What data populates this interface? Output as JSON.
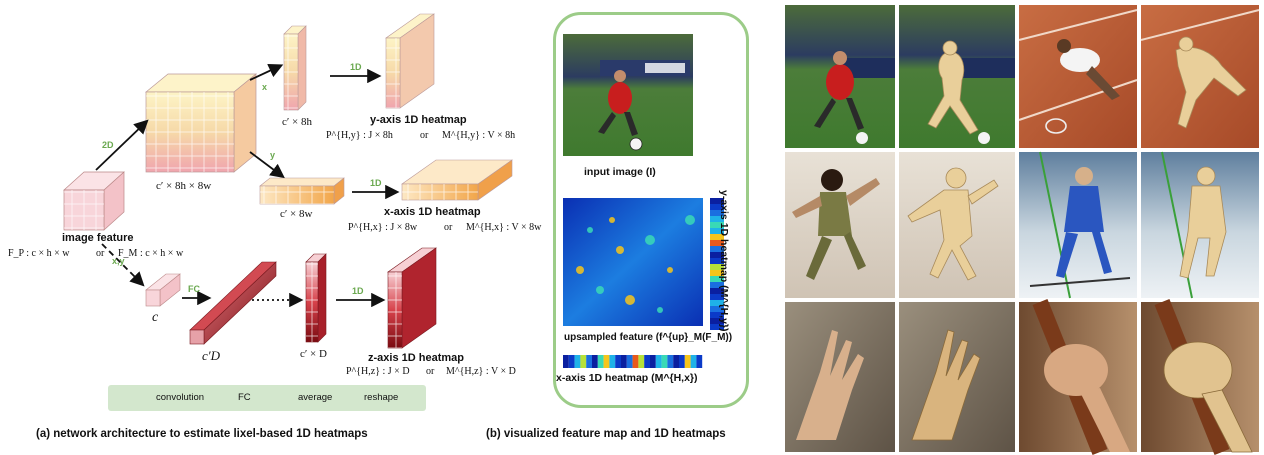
{
  "panel_a": {
    "caption": "(a) network architecture to estimate lixel-based 1D heatmaps",
    "image_feature": {
      "title": "image feature",
      "formula_p": "F_P : c × h × w",
      "or": "or",
      "formula_m": "F_M : c × h × w"
    },
    "arrow_2d": "2D",
    "arrow_x": "x",
    "arrow_y": "y",
    "arrow_xy": "x,y",
    "arrow_1d": "1D",
    "arrow_fc": "FC",
    "big_volume": "c′ × 8h × 8w",
    "y_branch_dim": "c′ × 8h",
    "x_branch_dim": "c′ × 8w",
    "c_label": "c",
    "cD_label": "c′D",
    "cxD_label": "c′ × D",
    "y_heatmap": {
      "title": "y-axis 1D heatmap",
      "p": "P^{H,y} : J × 8h",
      "or": "or",
      "m": "M^{H,y} : V × 8h"
    },
    "x_heatmap": {
      "title": "x-axis 1D heatmap",
      "p": "P^{H,x} : J × 8w",
      "or": "or",
      "m": "M^{H,x} : V × 8w"
    },
    "z_heatmap": {
      "title": "z-axis 1D heatmap",
      "p": "P^{H,z} : J × D",
      "or": "or",
      "m": "M^{H,z} : V × D"
    },
    "legend": {
      "convolution": "convolution",
      "fc": "FC",
      "average": "average",
      "reshape": "reshape"
    }
  },
  "panel_b": {
    "caption": "(b) visualized feature map and 1D heatmaps",
    "input_image": "input image (I)",
    "upsampled": "upsampled feature (f^{up}_M(F_M))",
    "x_heatmap": "x-axis 1D heatmap (M^{H,x})",
    "y_heatmap": "y-axis 1D heatmap (M^{H,y})"
  },
  "colors": {
    "yellow_light": "#fdf1c2",
    "yellow": "#f3d98a",
    "pink_light": "#f9dde2",
    "pink": "#ec9aa6",
    "orange": "#f4b55a",
    "red": "#c0202a",
    "dark_red": "#8c0c12",
    "green": "#6aa84f",
    "legend_bg": "#d3e7cd"
  }
}
